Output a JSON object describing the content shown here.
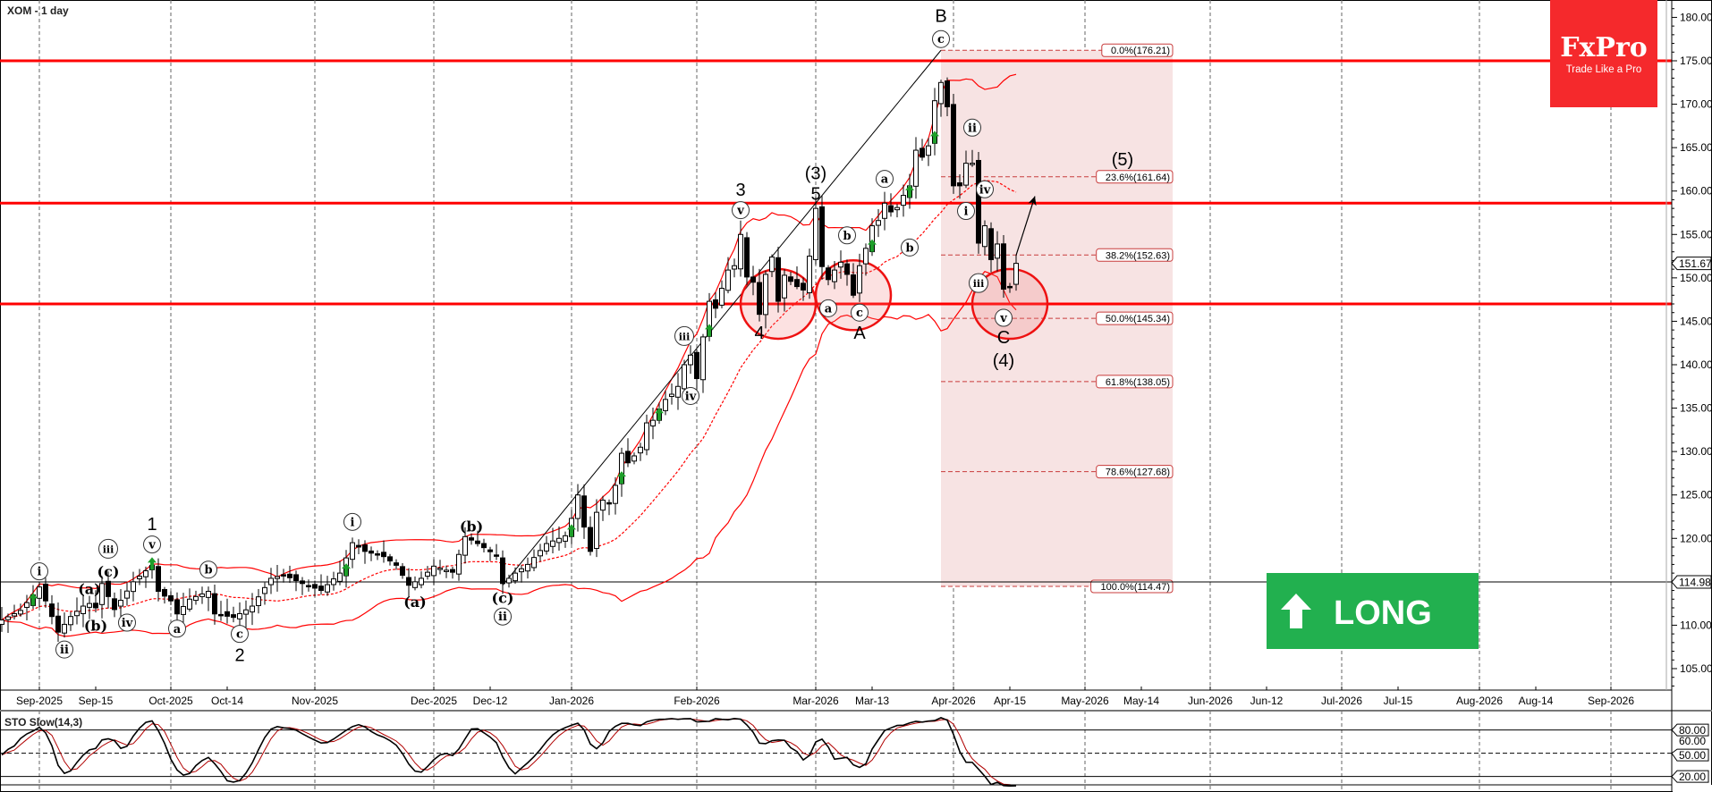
{
  "header": {
    "title": "XOM - 1 day"
  },
  "logo": {
    "brand": "FxPro",
    "tagline": "Trade Like a Pro",
    "color": "#f5292c"
  },
  "signal": {
    "label": "LONG",
    "icon": "arrow-up-icon",
    "color": "#22b04f"
  },
  "colors": {
    "levels": "#ff0000",
    "bands": "#ff0000",
    "fib": "#c83c3c",
    "fib_zone": "#f7e3e3",
    "stoch_k": "#000000",
    "stoch_d": "#b00000",
    "signal_arrows": "#1e9e2a"
  },
  "chart_data": {
    "type": "candlestick",
    "symbol": "XOM",
    "timeframe": "1 day",
    "ylim": [
      102,
      182
    ],
    "y_ticks": [
      105,
      110,
      115,
      120,
      125,
      130,
      135,
      140,
      145,
      150,
      155,
      160,
      165,
      170,
      175,
      180
    ],
    "y_tick_format": "2 decimals",
    "x_ticks": [
      {
        "date": "2025-09-02",
        "label": "Sep-2025",
        "month_start": true
      },
      {
        "date": "2025-09-15",
        "label": "Sep-15",
        "month_start": false
      },
      {
        "date": "2025-10-01",
        "label": "Oct-2025",
        "month_start": true
      },
      {
        "date": "2025-10-14",
        "label": "Oct-14",
        "month_start": false
      },
      {
        "date": "2025-11-03",
        "label": "Nov-2025",
        "month_start": true
      },
      {
        "date": "2025-12-01",
        "label": "Dec-2025",
        "month_start": true
      },
      {
        "date": "2025-12-12",
        "label": "Dec-12",
        "month_start": false
      },
      {
        "date": "2026-01-02",
        "label": "Jan-2026",
        "month_start": true
      },
      {
        "date": "2026-02-02",
        "label": "Feb-2026",
        "month_start": true
      },
      {
        "date": "2026-03-02",
        "label": "Mar-2026",
        "month_start": true
      },
      {
        "date": "2026-03-13",
        "label": "Mar-13",
        "month_start": false
      },
      {
        "date": "2026-04-01",
        "label": "Apr-2026",
        "month_start": true
      },
      {
        "date": "2026-04-15",
        "label": "Apr-15",
        "month_start": false
      },
      {
        "date": "2026-05-01",
        "label": "May-2026",
        "month_start": true
      },
      {
        "date": "2026-05-14",
        "label": "May-14",
        "month_start": false
      },
      {
        "date": "2026-06-01",
        "label": "Jun-2026",
        "month_start": true
      },
      {
        "date": "2026-06-12",
        "label": "Jun-12",
        "month_start": false
      },
      {
        "date": "2026-07-01",
        "label": "Jul-2026",
        "month_start": true
      },
      {
        "date": "2026-07-15",
        "label": "Jul-15",
        "month_start": false
      },
      {
        "date": "2026-08-03",
        "label": "Aug-2026",
        "month_start": true
      },
      {
        "date": "2026-08-14",
        "label": "Aug-14",
        "month_start": false
      },
      {
        "date": "2026-09-01",
        "label": "Sep-2026",
        "month_start": true
      }
    ],
    "closes": [
      [
        "2025-08-22",
        110.6
      ],
      [
        "2025-08-27",
        111.7
      ],
      [
        "2025-09-02",
        114.4
      ],
      [
        "2025-09-03",
        112.8
      ],
      [
        "2025-09-05",
        109.2
      ],
      [
        "2025-09-09",
        111.0
      ],
      [
        "2025-09-11",
        112.2
      ],
      [
        "2025-09-12",
        112.5
      ],
      [
        "2025-09-15",
        112.0
      ],
      [
        "2025-09-16",
        114.8
      ],
      [
        "2025-09-18",
        111.8
      ],
      [
        "2025-09-23",
        115.0
      ],
      [
        "2025-09-26",
        116.9
      ],
      [
        "2025-09-29",
        113.9
      ],
      [
        "2025-10-01",
        112.8
      ],
      [
        "2025-10-02",
        111.3
      ],
      [
        "2025-10-06",
        113.0
      ],
      [
        "2025-10-09",
        113.9
      ],
      [
        "2025-10-10",
        111.3
      ],
      [
        "2025-10-15",
        110.9
      ],
      [
        "2025-10-20",
        112.2
      ],
      [
        "2025-10-23",
        115.4
      ],
      [
        "2025-10-27",
        115.8
      ],
      [
        "2025-10-30",
        114.8
      ],
      [
        "2025-11-04",
        114.0
      ],
      [
        "2025-11-07",
        116.0
      ],
      [
        "2025-11-11",
        119.5
      ],
      [
        "2025-11-13",
        118.5
      ],
      [
        "2025-11-18",
        117.9
      ],
      [
        "2025-11-20",
        116.9
      ],
      [
        "2025-11-24",
        114.6
      ],
      [
        "2025-11-26",
        115.4
      ],
      [
        "2025-12-01",
        116.8
      ],
      [
        "2025-12-04",
        116.1
      ],
      [
        "2025-12-08",
        120.2
      ],
      [
        "2025-12-10",
        119.4
      ],
      [
        "2025-12-15",
        118.0
      ],
      [
        "2025-12-16",
        114.8
      ],
      [
        "2025-12-18",
        116.0
      ],
      [
        "2025-12-22",
        117.0
      ],
      [
        "2025-12-26",
        119.4
      ],
      [
        "2025-12-31",
        120.3
      ],
      [
        "2026-01-02",
        122.3
      ],
      [
        "2026-01-05",
        125.0
      ],
      [
        "2026-01-06",
        121.3
      ],
      [
        "2026-01-07",
        118.5
      ],
      [
        "2026-01-08",
        123.0
      ],
      [
        "2026-01-09",
        124.4
      ],
      [
        "2026-01-12",
        124.0
      ],
      [
        "2026-01-13",
        126.1
      ],
      [
        "2026-01-14",
        129.8
      ],
      [
        "2026-01-15",
        128.7
      ],
      [
        "2026-01-16",
        129.5
      ],
      [
        "2026-01-20",
        130.5
      ],
      [
        "2026-01-21",
        133.3
      ],
      [
        "2026-01-22",
        133.6
      ],
      [
        "2026-01-23",
        134.9
      ],
      [
        "2026-01-26",
        136.0
      ],
      [
        "2026-01-27",
        136.6
      ],
      [
        "2026-01-28",
        137.5
      ],
      [
        "2026-01-29",
        140.0
      ],
      [
        "2026-01-30",
        141.1
      ],
      [
        "2026-02-02",
        138.4
      ],
      [
        "2026-02-03",
        143.2
      ],
      [
        "2026-02-04",
        147.3
      ],
      [
        "2026-02-05",
        146.5
      ],
      [
        "2026-02-06",
        148.8
      ],
      [
        "2026-02-09",
        150.9
      ],
      [
        "2026-02-10",
        151.4
      ],
      [
        "2026-02-11",
        155.0
      ],
      [
        "2026-02-12",
        150.1
      ],
      [
        "2026-02-13",
        149.5
      ],
      [
        "2026-02-17",
        145.8
      ],
      [
        "2026-02-18",
        150.4
      ],
      [
        "2026-02-19",
        152.4
      ],
      [
        "2026-02-20",
        147.3
      ],
      [
        "2026-02-23",
        150.3
      ],
      [
        "2026-02-24",
        149.6
      ],
      [
        "2026-02-25",
        149.0
      ],
      [
        "2026-02-26",
        148.6
      ],
      [
        "2026-02-27",
        152.5
      ],
      [
        "2026-03-02",
        158.0
      ],
      [
        "2026-03-03",
        151.3
      ],
      [
        "2026-03-04",
        149.8
      ],
      [
        "2026-03-05",
        150.9
      ],
      [
        "2026-03-06",
        151.8
      ],
      [
        "2026-03-09",
        150.4
      ],
      [
        "2026-03-10",
        148.0
      ],
      [
        "2026-03-11",
        151.4
      ],
      [
        "2026-03-12",
        153.4
      ],
      [
        "2026-03-13",
        156.0
      ],
      [
        "2026-03-16",
        156.6
      ],
      [
        "2026-03-17",
        158.6
      ],
      [
        "2026-03-18",
        157.6
      ],
      [
        "2026-03-19",
        158.1
      ],
      [
        "2026-03-20",
        159.5
      ],
      [
        "2026-03-23",
        160.6
      ],
      [
        "2026-03-24",
        164.7
      ],
      [
        "2026-03-25",
        163.9
      ],
      [
        "2026-03-26",
        165.2
      ],
      [
        "2026-03-27",
        170.4
      ],
      [
        "2026-03-30",
        172.5
      ],
      [
        "2026-03-31",
        169.7
      ],
      [
        "2026-04-01",
        160.6
      ],
      [
        "2026-04-02",
        160.6
      ],
      [
        "2026-04-06",
        163.2
      ],
      [
        "2026-04-07",
        163.2
      ],
      [
        "2026-04-08",
        154.0
      ],
      [
        "2026-04-09",
        156.0
      ],
      [
        "2026-04-10",
        152.1
      ],
      [
        "2026-04-13",
        153.9
      ],
      [
        "2026-04-14",
        148.7
      ],
      [
        "2026-04-15",
        148.9
      ],
      [
        "2026-04-16",
        151.67
      ]
    ],
    "last_price": {
      "value": 151.67,
      "label": "151.67"
    },
    "reference_line": {
      "value": 114.98,
      "label": "114.98"
    },
    "horizontal_levels": [
      175.0,
      158.6,
      147.0
    ],
    "indicators": [
      "Bollinger Bands (20,2)",
      "STO Slow(14,3)"
    ],
    "fibonacci": {
      "from": {
        "date": "2026-03-30",
        "price": 176.21
      },
      "to_date": "2026-05-21",
      "levels": [
        {
          "label": "0.0%(176.21)",
          "price": 176.21
        },
        {
          "label": "23.6%(161.64)",
          "price": 161.64
        },
        {
          "label": "38.2%(152.63)",
          "price": 152.63
        },
        {
          "label": "50.0%(145.34)",
          "price": 145.34
        },
        {
          "label": "61.8%(138.05)",
          "price": 138.05
        },
        {
          "label": "78.6%(127.68)",
          "price": 127.68
        },
        {
          "label": "100.0%(114.47)",
          "price": 114.47
        }
      ]
    },
    "trend_line": {
      "from": {
        "date": "2025-12-16",
        "price": 114.6
      },
      "to": {
        "date": "2026-03-30",
        "price": 176.21
      }
    },
    "projection_arrow": {
      "from": {
        "date": "2026-04-16",
        "price": 152.6
      },
      "to": {
        "date": "2026-04-21",
        "price": 159.4
      }
    },
    "highlight_circles": [
      {
        "date": "2026-02-20",
        "price": 147.0
      },
      {
        "date": "2026-03-10",
        "price": 148.0
      },
      {
        "date": "2026-04-15",
        "price": 147.0
      }
    ],
    "signal_arrows": [
      "2025-08-29",
      "2025-09-26",
      "2025-11-10",
      "2026-01-02",
      "2026-01-14",
      "2026-01-23",
      "2026-02-04",
      "2026-03-13",
      "2026-03-23",
      "2026-03-27"
    ],
    "wave_labels": [
      {
        "text": "i",
        "date": "2025-09-02",
        "price": 116.2,
        "circled": true
      },
      {
        "text": "ii",
        "date": "2025-09-08",
        "price": 107.2,
        "circled": true
      },
      {
        "text": "(a)",
        "date": "2025-09-12",
        "price": 114.2,
        "circled": false
      },
      {
        "text": "(b)",
        "date": "2025-09-15",
        "price": 110.0,
        "circled": false
      },
      {
        "text": "(c)",
        "date": "2025-09-17",
        "price": 116.2,
        "circled": false
      },
      {
        "text": "iii",
        "date": "2025-09-17",
        "price": 118.8,
        "circled": true
      },
      {
        "text": "iv",
        "date": "2025-09-22",
        "price": 110.3,
        "circled": true
      },
      {
        "text": "v",
        "date": "2025-09-26",
        "price": 119.3,
        "circled": true
      },
      {
        "text": "1",
        "date": "2025-09-26",
        "price": 121.7,
        "circled": false,
        "big": true
      },
      {
        "text": "a",
        "date": "2025-10-02",
        "price": 109.6,
        "circled": true
      },
      {
        "text": "b",
        "date": "2025-10-09",
        "price": 116.4,
        "circled": true
      },
      {
        "text": "c",
        "date": "2025-10-16",
        "price": 109.0,
        "circled": true
      },
      {
        "text": "2",
        "date": "2025-10-16",
        "price": 106.6,
        "circled": false,
        "big": true
      },
      {
        "text": "i",
        "date": "2025-11-11",
        "price": 121.9,
        "circled": true
      },
      {
        "text": "(a)",
        "date": "2025-11-25",
        "price": 112.7,
        "circled": false
      },
      {
        "text": "(b)",
        "date": "2025-12-09",
        "price": 121.4,
        "circled": false
      },
      {
        "text": "(c)",
        "date": "2025-12-16",
        "price": 113.2,
        "circled": false
      },
      {
        "text": "ii",
        "date": "2025-12-16",
        "price": 111.0,
        "circled": true
      },
      {
        "text": "iii",
        "date": "2026-01-29",
        "price": 143.3,
        "circled": true
      },
      {
        "text": "iv",
        "date": "2026-01-30",
        "price": 136.4,
        "circled": true
      },
      {
        "text": "3",
        "date": "2026-02-11",
        "price": 160.2,
        "circled": false,
        "big": true
      },
      {
        "text": "v",
        "date": "2026-02-11",
        "price": 157.8,
        "circled": true
      },
      {
        "text": "4",
        "date": "2026-02-17",
        "price": 143.7,
        "circled": false,
        "big": true
      },
      {
        "text": "(3)",
        "date": "2026-03-02",
        "price": 162.1,
        "circled": false,
        "big": true
      },
      {
        "text": "5",
        "date": "2026-03-02",
        "price": 159.7,
        "circled": false,
        "big": true
      },
      {
        "text": "a",
        "date": "2026-03-04",
        "price": 146.5,
        "circled": true
      },
      {
        "text": "b",
        "date": "2026-03-09",
        "price": 154.9,
        "circled": true
      },
      {
        "text": "c",
        "date": "2026-03-11",
        "price": 146.0,
        "circled": true
      },
      {
        "text": "A",
        "date": "2026-03-11",
        "price": 143.7,
        "circled": false,
        "big": true
      },
      {
        "text": "a",
        "date": "2026-03-17",
        "price": 161.4,
        "circled": true
      },
      {
        "text": "b",
        "date": "2026-03-23",
        "price": 153.5,
        "circled": true
      },
      {
        "text": "c",
        "date": "2026-03-30",
        "price": 177.5,
        "circled": true
      },
      {
        "text": "B",
        "date": "2026-03-30",
        "price": 180.2,
        "circled": false,
        "big": true
      },
      {
        "text": "i",
        "date": "2026-04-06",
        "price": 157.7,
        "circled": true
      },
      {
        "text": "ii",
        "date": "2026-04-07",
        "price": 167.3,
        "circled": true
      },
      {
        "text": "iii",
        "date": "2026-04-08",
        "price": 149.4,
        "circled": true
      },
      {
        "text": "iv",
        "date": "2026-04-09",
        "price": 160.2,
        "circled": true
      },
      {
        "text": "v",
        "date": "2026-04-14",
        "price": 145.4,
        "circled": true
      },
      {
        "text": "C",
        "date": "2026-04-14",
        "price": 143.2,
        "circled": false,
        "big": true
      },
      {
        "text": "(4)",
        "date": "2026-04-14",
        "price": 140.5,
        "circled": false,
        "big": true
      },
      {
        "text": "(5)",
        "date": "2026-05-11",
        "price": 163.7,
        "circled": false,
        "big": true
      }
    ],
    "stochastic": {
      "label": "STO Slow(14,3)",
      "ylim": [
        0,
        100
      ],
      "levels": [
        {
          "value": 80,
          "label": "80.00",
          "style": "solid"
        },
        {
          "value": 60,
          "label": "60.00",
          "style": "none"
        },
        {
          "value": 50,
          "label": "50.00",
          "style": "dashed"
        },
        {
          "value": 20,
          "label": "20.00",
          "style": "solid"
        }
      ]
    }
  }
}
